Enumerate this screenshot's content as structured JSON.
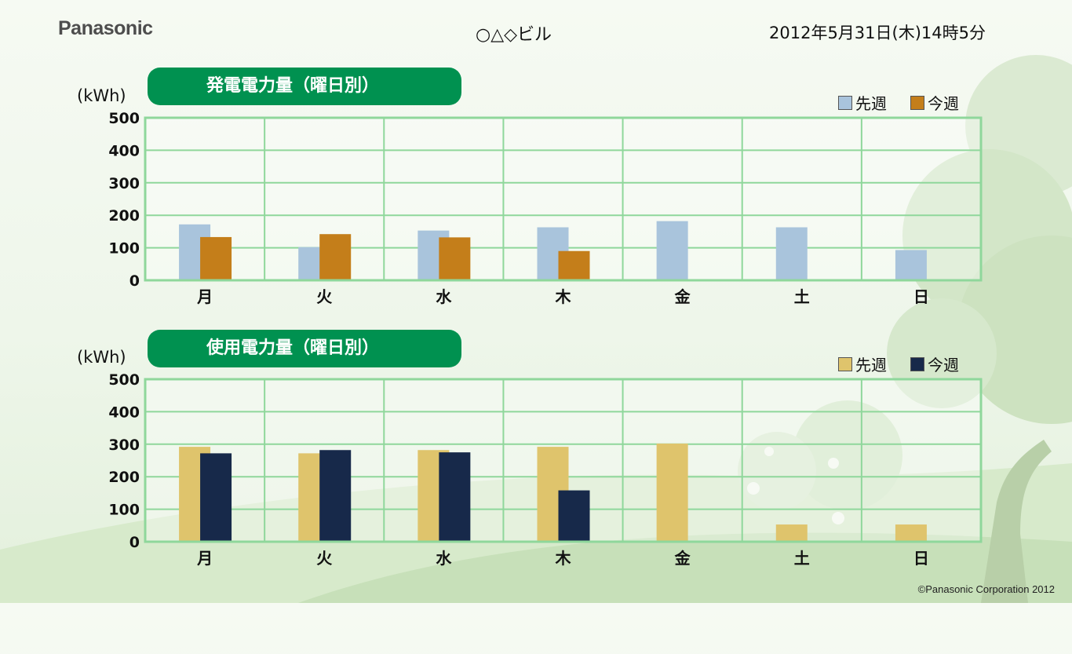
{
  "header": {
    "logo": "Panasonic",
    "building": "○△◇ビル",
    "datetime": "2012年5月31日(木)14時5分"
  },
  "footer": {
    "copyright": "©Panasonic Corporation 2012"
  },
  "colors": {
    "title_bg": "#009150",
    "grid": "#8fd79b",
    "gen_last": "#a9c4dc",
    "gen_this": "#c47e1a",
    "use_last": "#dfc46c",
    "use_this": "#17294a"
  },
  "chart_data": [
    {
      "type": "bar",
      "title": "発電電力量（曜日別）",
      "ylabel": "(kWh)",
      "ylim": [
        0,
        500
      ],
      "yticks": [
        "0",
        "100",
        "200",
        "300",
        "400",
        "500"
      ],
      "categories": [
        "月",
        "火",
        "水",
        "木",
        "金",
        "土",
        "日"
      ],
      "legend_position": "top-right",
      "grid": true,
      "series": [
        {
          "name": "先週",
          "color": "#a9c4dc",
          "values": [
            172,
            102,
            153,
            163,
            182,
            163,
            93
          ]
        },
        {
          "name": "今週",
          "color": "#c47e1a",
          "values": [
            133,
            142,
            132,
            90,
            null,
            null,
            null
          ]
        }
      ]
    },
    {
      "type": "bar",
      "title": "使用電力量（曜日別）",
      "ylabel": "(kWh)",
      "ylim": [
        0,
        500
      ],
      "yticks": [
        "0",
        "100",
        "200",
        "300",
        "400",
        "500"
      ],
      "categories": [
        "月",
        "火",
        "水",
        "木",
        "金",
        "土",
        "日"
      ],
      "legend_position": "top-right",
      "grid": true,
      "series": [
        {
          "name": "先週",
          "color": "#dfc46c",
          "values": [
            292,
            272,
            282,
            292,
            302,
            53,
            53
          ]
        },
        {
          "name": "今週",
          "color": "#17294a",
          "values": [
            272,
            282,
            275,
            158,
            null,
            null,
            null
          ]
        }
      ]
    }
  ]
}
